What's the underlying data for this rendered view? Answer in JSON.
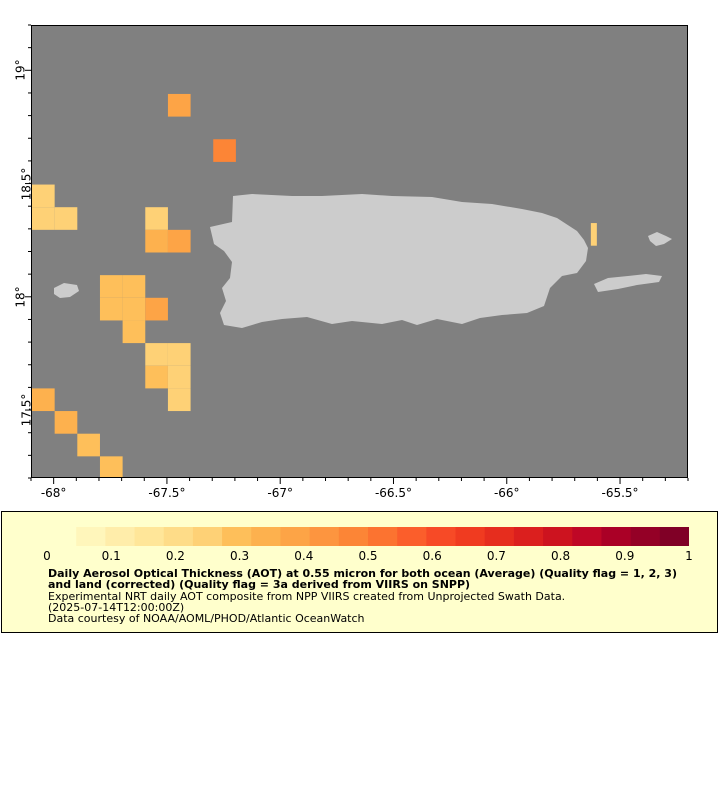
{
  "map": {
    "background_color": "#808080",
    "land_color": "#cccccc",
    "lon_range": [
      -68.1,
      -65.2
    ],
    "lat_range": [
      17.2,
      19.2
    ],
    "x_ticks": [
      {
        "value": -68,
        "label": "-68°"
      },
      {
        "value": -67.5,
        "label": "-67.5°"
      },
      {
        "value": -67,
        "label": "-67°"
      },
      {
        "value": -66.5,
        "label": "-66.5°"
      },
      {
        "value": -66,
        "label": "-66°"
      },
      {
        "value": -65.5,
        "label": "-65.5°"
      }
    ],
    "y_ticks": [
      {
        "value": 19,
        "label": "19°"
      },
      {
        "value": 18.5,
        "label": "18.5°"
      },
      {
        "value": 18,
        "label": "18°"
      },
      {
        "value": 17.5,
        "label": "17.5°"
      }
    ],
    "cells": [
      {
        "lon": -67.45,
        "lat": 18.85,
        "aot": 0.38
      },
      {
        "lon": -67.25,
        "lat": 18.65,
        "aot": 0.48
      },
      {
        "lon": -68.05,
        "lat": 18.45,
        "aot": 0.25
      },
      {
        "lon": -68.05,
        "lat": 18.35,
        "aot": 0.26
      },
      {
        "lon": -67.95,
        "lat": 18.35,
        "aot": 0.27
      },
      {
        "lon": -67.55,
        "lat": 18.35,
        "aot": 0.27
      },
      {
        "lon": -67.55,
        "lat": 18.25,
        "aot": 0.33
      },
      {
        "lon": -67.45,
        "lat": 18.25,
        "aot": 0.37
      },
      {
        "lon": -67.75,
        "lat": 18.05,
        "aot": 0.3
      },
      {
        "lon": -67.65,
        "lat": 18.05,
        "aot": 0.3
      },
      {
        "lon": -67.75,
        "lat": 17.95,
        "aot": 0.28
      },
      {
        "lon": -67.65,
        "lat": 17.95,
        "aot": 0.3
      },
      {
        "lon": -67.55,
        "lat": 17.95,
        "aot": 0.37
      },
      {
        "lon": -67.65,
        "lat": 17.85,
        "aot": 0.3
      },
      {
        "lon": -67.55,
        "lat": 17.75,
        "aot": 0.26
      },
      {
        "lon": -67.45,
        "lat": 17.75,
        "aot": 0.26
      },
      {
        "lon": -67.55,
        "lat": 17.65,
        "aot": 0.3
      },
      {
        "lon": -67.45,
        "lat": 17.65,
        "aot": 0.27
      },
      {
        "lon": -67.45,
        "lat": 17.55,
        "aot": 0.27
      },
      {
        "lon": -68.05,
        "lat": 17.55,
        "aot": 0.33
      },
      {
        "lon": -67.95,
        "lat": 17.45,
        "aot": 0.33
      },
      {
        "lon": -67.85,
        "lat": 17.35,
        "aot": 0.3
      },
      {
        "lon": -67.75,
        "lat": 17.25,
        "aot": 0.28
      },
      {
        "lon": -65.62,
        "lat": 18.28,
        "aot": 0.25
      }
    ]
  },
  "colorbar": {
    "min": 0,
    "max": 1,
    "colors": [
      "#ffffcc",
      "#fff6bb",
      "#ffedaa",
      "#ffe699",
      "#fedc88",
      "#fed176",
      "#febf5a",
      "#fdb14e",
      "#fda446",
      "#fd953f",
      "#fc8536",
      "#fc7330",
      "#fb5e2b",
      "#f74a26",
      "#f03b20",
      "#e62d1e",
      "#db1f1e",
      "#cd131f",
      "#bf0726",
      "#aa0026",
      "#940026",
      "#800026"
    ],
    "tick_labels": [
      "0",
      "0.1",
      "0.2",
      "0.3",
      "0.4",
      "0.5",
      "0.6",
      "0.7",
      "0.8",
      "0.9",
      "1"
    ]
  },
  "legend": {
    "title": "Daily Aerosol Optical Thickness (AOT) at 0.55 micron for both ocean (Average) (Quality flag = 1, 2, 3) and land (corrected) (Quality flag = 3a derived from VIIRS on SNPP)",
    "line1": "Experimental NRT daily AOT composite from NPP VIIRS created from Unprojected Swath Data.",
    "line2": "(2025-07-14T12:00:00Z)",
    "line3": "Data courtesy of NOAA/AOML/PHOD/Atlantic OceanWatch"
  }
}
